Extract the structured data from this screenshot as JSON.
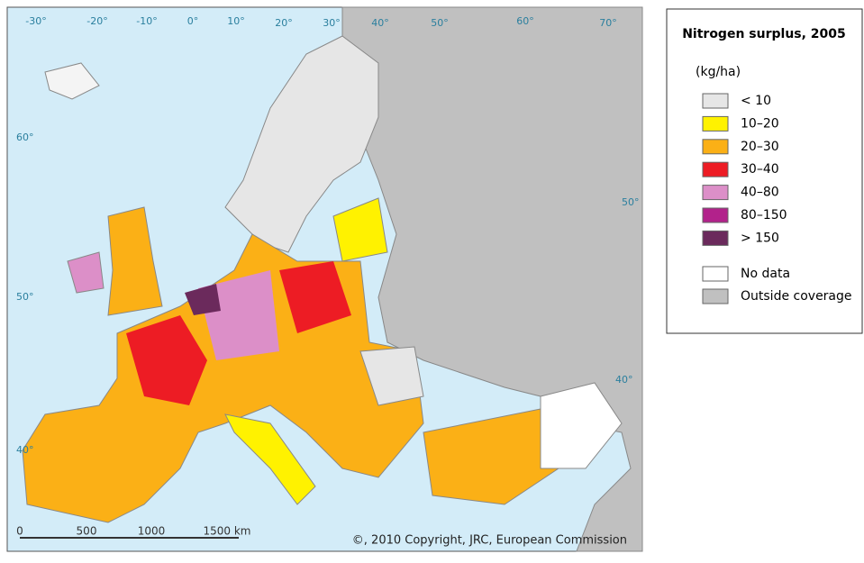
{
  "map": {
    "longitude_labels": [
      "-30°",
      "-20°",
      "-10°",
      "0°",
      "10°",
      "20°",
      "30°",
      "40°",
      "50°",
      "60°",
      "70°"
    ],
    "latitude_labels_left": [
      "60°",
      "50°",
      "40°"
    ],
    "latitude_labels_right": [
      "50°",
      "40°"
    ],
    "scale_bar": [
      "0",
      "500",
      "1000",
      "1500 km"
    ],
    "copyright": "©, 2010 Copyright, JRC, European Commission"
  },
  "legend": {
    "title": "Nitrogen surplus, 2005",
    "unit": "(kg/ha)",
    "classes": [
      {
        "label": "< 10",
        "color": "#e6e6e6"
      },
      {
        "label": "10–20",
        "color": "#fff200"
      },
      {
        "label": "20–30",
        "color": "#fbb016"
      },
      {
        "label": "30–40",
        "color": "#ed1c24"
      },
      {
        "label": "40–80",
        "color": "#dc8fc8"
      },
      {
        "label": "80–150",
        "color": "#b2228b"
      },
      {
        "label": "> 150",
        "color": "#6b2a5c"
      }
    ],
    "other": [
      {
        "label": "No data",
        "color": "#ffffff"
      },
      {
        "label": "Outside coverage",
        "color": "#c0c0c0"
      }
    ]
  }
}
